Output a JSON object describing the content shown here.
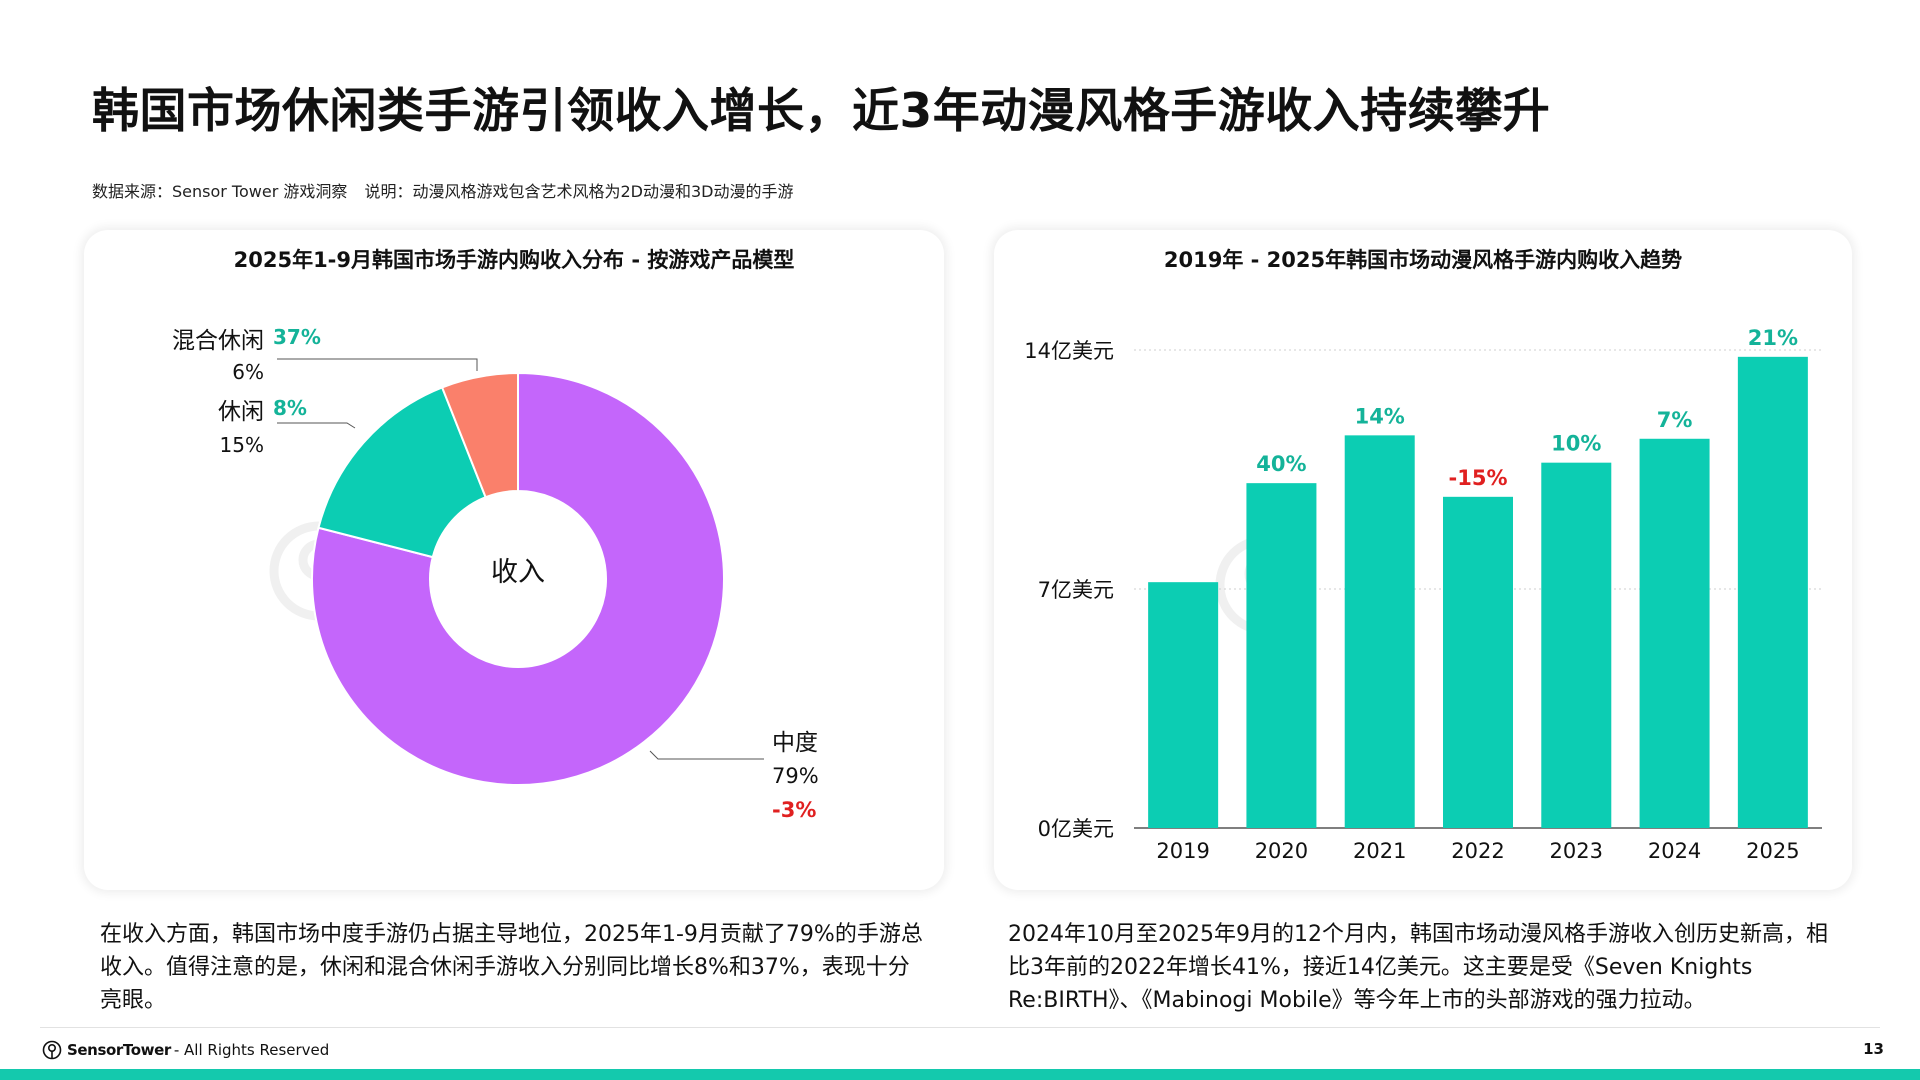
{
  "page": {
    "title": "韩国市场休闲类手游引领收入增长，近3年动漫风格手游收入持续攀升",
    "source": "数据来源：Sensor Tower 游戏洞察",
    "note": "说明：动漫风格游戏包含艺术风格为2D动漫和3D动漫的手游",
    "page_number": "13"
  },
  "colors": {
    "purple": "#c466fb",
    "teal": "#0ccdb3",
    "salmon": "#fa806b",
    "positive": "#14b399",
    "negative": "#e02020"
  },
  "chart_data": [
    {
      "type": "pie",
      "variant": "donut",
      "title": "2025年1-9月韩国市场手游内购收入分布 - 按游戏产品模型",
      "center_label": "收入",
      "slices": [
        {
          "label": "中度",
          "share": 79,
          "share_text": "79%",
          "growth": -3,
          "growth_text": "-3%",
          "color": "#c466fb"
        },
        {
          "label": "休闲",
          "share": 15,
          "share_text": "15%",
          "growth": 8,
          "growth_text": "8%",
          "color": "#0ccdb3"
        },
        {
          "label": "混合休闲",
          "share": 6,
          "share_text": "6%",
          "growth": 37,
          "growth_text": "37%",
          "color": "#fa806b"
        }
      ]
    },
    {
      "type": "bar",
      "title": "2019年 - 2025年韩国市场动漫风格手游内购收入趋势",
      "categories": [
        "2019",
        "2020",
        "2021",
        "2022",
        "2023",
        "2024",
        "2025"
      ],
      "values": [
        7.2,
        10.1,
        11.5,
        9.7,
        10.7,
        11.4,
        13.8
      ],
      "growth_labels": [
        "",
        "40%",
        "14%",
        "-15%",
        "10%",
        "7%",
        "21%"
      ],
      "y_unit": "亿美元",
      "ylim": [
        0,
        14
      ],
      "y_ticks": [
        {
          "value": 0,
          "label": "0亿美元"
        },
        {
          "value": 7,
          "label": "7亿美元"
        },
        {
          "value": 14,
          "label": "14亿美元"
        }
      ],
      "grid": true,
      "bar_color": "#0ccdb3"
    }
  ],
  "descriptions": {
    "left": "在收入方面，韩国市场中度手游仍占据主导地位，2025年1-9月贡献了79%的手游总收入。值得注意的是，休闲和混合休闲手游收入分别同比增长8%和37%，表现十分亮眼。",
    "right": "2024年10月至2025年9月的12个月内，韩国市场动漫风格手游收入创历史新高，相比3年前的2022年增长41%，接近14亿美元。这主要是受《Seven Knights Re:BIRTH》、《Mabinogi Mobile》等今年上市的头部游戏的强力拉动。"
  },
  "footer": {
    "brand": "SensorTower",
    "rights": "- All Rights Reserved"
  }
}
